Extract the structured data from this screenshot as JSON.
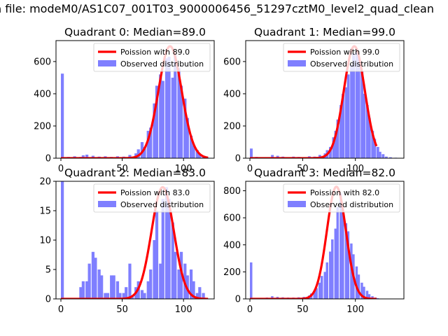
{
  "figure_title": "n file: modeM0/AS1C07_001T03_9000006456_51297cztM0_level2_quad_clean",
  "legend_labels": {
    "observed": "Observed distribution"
  },
  "colors": {
    "poisson_line": "#ff0000",
    "histogram": "#7f7fff"
  },
  "chart_data": [
    {
      "type": "bar",
      "title": "Quadrant 0: Median=89.0",
      "median": 89,
      "poisson_label": "Poission with 89.0",
      "xlim": [
        -4,
        125
      ],
      "ylim": [
        0,
        730
      ],
      "xticks": [
        0,
        50,
        100
      ],
      "yticks": [
        0,
        200,
        400,
        600
      ],
      "show_xticklabels": true,
      "legend": "top-right",
      "poisson_peak": 695,
      "bin_width": 2.4,
      "histogram": [
        [
          0,
          525
        ],
        [
          5,
          8
        ],
        [
          10,
          12
        ],
        [
          15,
          8
        ],
        [
          17,
          18
        ],
        [
          20,
          22
        ],
        [
          25,
          15
        ],
        [
          30,
          10
        ],
        [
          35,
          12
        ],
        [
          40,
          8
        ],
        [
          45,
          12
        ],
        [
          50,
          10
        ],
        [
          55,
          20
        ],
        [
          60,
          30
        ],
        [
          62,
          55
        ],
        [
          65,
          100
        ],
        [
          67,
          70
        ],
        [
          70,
          170
        ],
        [
          72,
          190
        ],
        [
          75,
          340
        ],
        [
          77,
          450
        ],
        [
          80,
          520
        ],
        [
          82,
          480
        ],
        [
          85,
          620
        ],
        [
          87,
          630
        ],
        [
          90,
          500
        ],
        [
          92,
          640
        ],
        [
          95,
          560
        ],
        [
          97,
          450
        ],
        [
          100,
          370
        ],
        [
          102,
          250
        ],
        [
          105,
          140
        ],
        [
          107,
          80
        ],
        [
          110,
          50
        ],
        [
          112,
          25
        ],
        [
          115,
          10
        ],
        [
          118,
          5
        ]
      ]
    },
    {
      "type": "bar",
      "title": "Quadrant 1: Median=99.0",
      "median": 99,
      "poisson_label": "Poission with 99.0",
      "xlim": [
        -4,
        146
      ],
      "ylim": [
        0,
        730
      ],
      "xticks": [
        0,
        50,
        100
      ],
      "yticks": [
        0,
        200,
        400,
        600
      ],
      "show_xticklabels": true,
      "legend": "top-right",
      "poisson_peak": 695,
      "bin_width": 2.6,
      "histogram": [
        [
          0,
          60
        ],
        [
          5,
          8
        ],
        [
          12,
          5
        ],
        [
          20,
          20
        ],
        [
          25,
          15
        ],
        [
          30,
          10
        ],
        [
          40,
          10
        ],
        [
          45,
          8
        ],
        [
          55,
          12
        ],
        [
          60,
          10
        ],
        [
          65,
          20
        ],
        [
          70,
          30
        ],
        [
          72,
          50
        ],
        [
          75,
          70
        ],
        [
          78,
          130
        ],
        [
          80,
          170
        ],
        [
          82,
          240
        ],
        [
          85,
          330
        ],
        [
          87,
          400
        ],
        [
          90,
          440
        ],
        [
          92,
          520
        ],
        [
          95,
          580
        ],
        [
          97,
          650
        ],
        [
          100,
          680
        ],
        [
          102,
          620
        ],
        [
          105,
          540
        ],
        [
          107,
          400
        ],
        [
          110,
          330
        ],
        [
          112,
          250
        ],
        [
          115,
          170
        ],
        [
          117,
          120
        ],
        [
          120,
          70
        ],
        [
          122,
          40
        ],
        [
          125,
          25
        ],
        [
          128,
          10
        ],
        [
          132,
          6
        ],
        [
          137,
          3
        ]
      ]
    },
    {
      "type": "bar",
      "title": "Quadrant 2: Median=83.0",
      "median": 83,
      "poisson_label": "Poission with 83.0",
      "xlim": [
        -4,
        125
      ],
      "ylim": [
        0,
        20
      ],
      "xticks": [
        0,
        50,
        100
      ],
      "yticks": [
        0,
        5,
        10,
        15,
        20
      ],
      "show_xticklabels": true,
      "legend": "top-right",
      "poisson_peak": 19,
      "bin_width": 2.4,
      "histogram": [
        [
          0,
          21
        ],
        [
          15,
          2
        ],
        [
          17,
          3
        ],
        [
          20,
          3
        ],
        [
          22,
          6
        ],
        [
          25,
          8
        ],
        [
          27,
          7
        ],
        [
          30,
          5
        ],
        [
          32,
          4
        ],
        [
          35,
          1
        ],
        [
          37,
          1
        ],
        [
          40,
          4
        ],
        [
          42,
          4
        ],
        [
          45,
          3
        ],
        [
          47,
          1
        ],
        [
          50,
          1
        ],
        [
          52,
          2
        ],
        [
          55,
          6
        ],
        [
          57,
          0.5
        ],
        [
          60,
          2
        ],
        [
          62,
          3
        ],
        [
          65,
          1.5
        ],
        [
          67,
          1
        ],
        [
          70,
          3
        ],
        [
          72,
          5
        ],
        [
          75,
          10
        ],
        [
          77,
          15
        ],
        [
          80,
          6
        ],
        [
          82,
          17
        ],
        [
          85,
          19
        ],
        [
          87,
          17
        ],
        [
          90,
          13
        ],
        [
          92,
          8
        ],
        [
          95,
          5
        ],
        [
          97,
          8
        ],
        [
          100,
          6
        ],
        [
          102,
          4
        ],
        [
          105,
          5
        ],
        [
          107,
          3
        ],
        [
          110,
          1
        ],
        [
          112,
          2
        ],
        [
          115,
          1
        ]
      ]
    },
    {
      "type": "bar",
      "title": "Quadrant 3: Median=82.0",
      "median": 82,
      "poisson_label": "Poission with 82.0",
      "xlim": [
        -4,
        146
      ],
      "ylim": [
        0,
        870
      ],
      "xticks": [
        0,
        50,
        100
      ],
      "yticks": [
        0,
        200,
        400,
        600,
        800
      ],
      "show_xticklabels": true,
      "legend": "top-right",
      "poisson_peak": 830,
      "bin_width": 2.3,
      "histogram": [
        [
          0,
          270
        ],
        [
          5,
          5
        ],
        [
          10,
          8
        ],
        [
          15,
          10
        ],
        [
          20,
          20
        ],
        [
          25,
          15
        ],
        [
          30,
          12
        ],
        [
          35,
          10
        ],
        [
          40,
          10
        ],
        [
          45,
          12
        ],
        [
          50,
          15
        ],
        [
          55,
          25
        ],
        [
          57,
          40
        ],
        [
          60,
          60
        ],
        [
          62,
          80
        ],
        [
          65,
          120
        ],
        [
          67,
          170
        ],
        [
          70,
          200
        ],
        [
          72,
          270
        ],
        [
          75,
          350
        ],
        [
          77,
          440
        ],
        [
          80,
          520
        ],
        [
          82,
          680
        ],
        [
          85,
          780
        ],
        [
          87,
          640
        ],
        [
          90,
          560
        ],
        [
          92,
          500
        ],
        [
          95,
          410
        ],
        [
          97,
          330
        ],
        [
          100,
          240
        ],
        [
          102,
          180
        ],
        [
          105,
          120
        ],
        [
          107,
          90
        ],
        [
          110,
          60
        ],
        [
          112,
          35
        ],
        [
          115,
          20
        ],
        [
          118,
          10
        ],
        [
          120,
          5
        ]
      ]
    }
  ]
}
